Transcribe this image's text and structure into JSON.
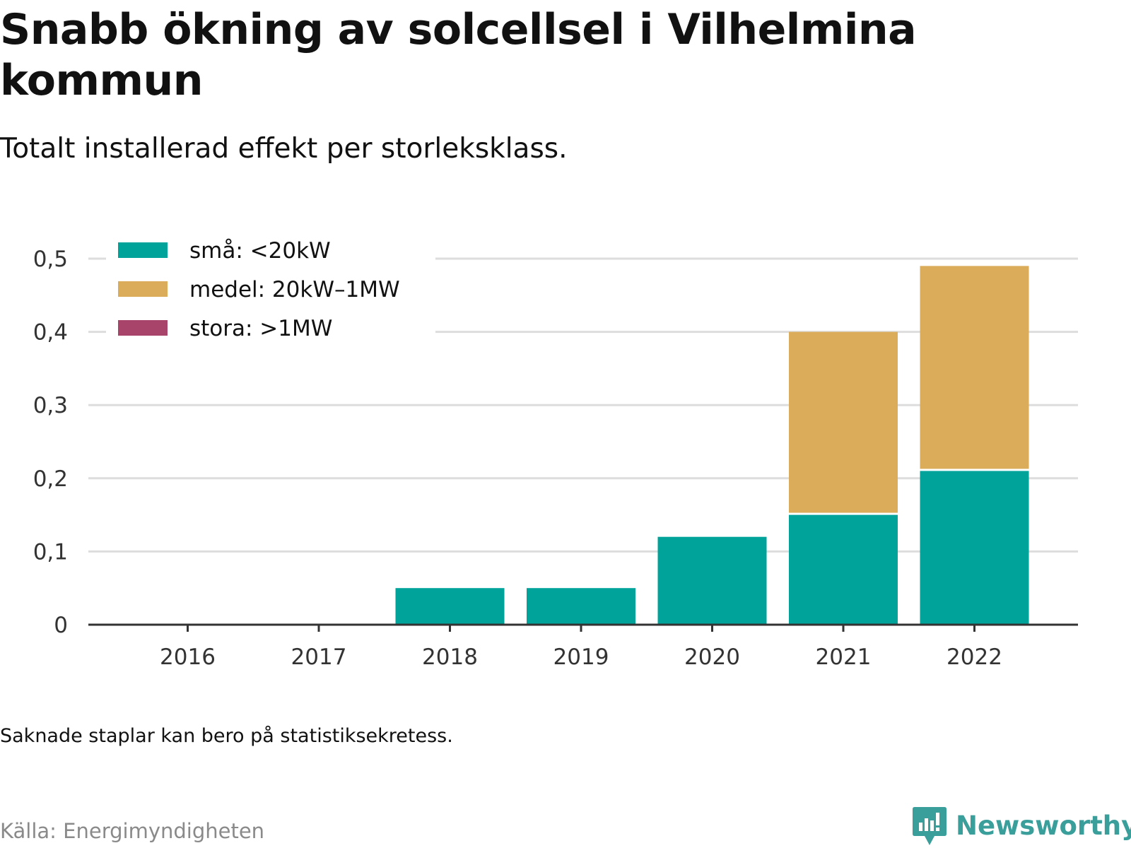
{
  "header": {
    "title": "Snabb ökning av solcellsel i Vilhelmina kommun",
    "subtitle": "Totalt installerad effekt per storleksklass."
  },
  "footer": {
    "note": "Saknade staplar kan bero på statistiksekretess.",
    "source": "Källa: Energimyndigheten",
    "brand": "Newsworthy"
  },
  "colors": {
    "small": "#00a39a",
    "medium": "#dbac5a",
    "large": "#a8446a",
    "grid": "#dddddd",
    "axis": "#333333"
  },
  "chart_data": {
    "type": "bar",
    "stacked": true,
    "title": "Snabb ökning av solcellsel i Vilhelmina kommun",
    "subtitle": "Totalt installerad effekt per storleksklass.",
    "xlabel": "",
    "ylabel": "",
    "categories": [
      "2016",
      "2017",
      "2018",
      "2019",
      "2020",
      "2021",
      "2022"
    ],
    "ylim": [
      0,
      0.5
    ],
    "yticks": [
      0,
      0.1,
      0.2,
      0.3,
      0.4,
      0.5
    ],
    "ytick_labels": [
      "0",
      "0,1",
      "0,2",
      "0,3",
      "0,4",
      "0,5"
    ],
    "grid": true,
    "legend_position": "top-left",
    "series": [
      {
        "name": "små: <20kW",
        "color": "#00a39a",
        "values": [
          0,
          0,
          0.05,
          0.05,
          0.12,
          0.15,
          0.21
        ]
      },
      {
        "name": "medel: 20kW–1MW",
        "color": "#dbac5a",
        "values": [
          0,
          0,
          0,
          0,
          0,
          0.25,
          0.28
        ]
      },
      {
        "name": "stora: >1MW",
        "color": "#a8446a",
        "values": [
          0,
          0,
          0,
          0,
          0,
          0,
          0
        ]
      }
    ]
  }
}
